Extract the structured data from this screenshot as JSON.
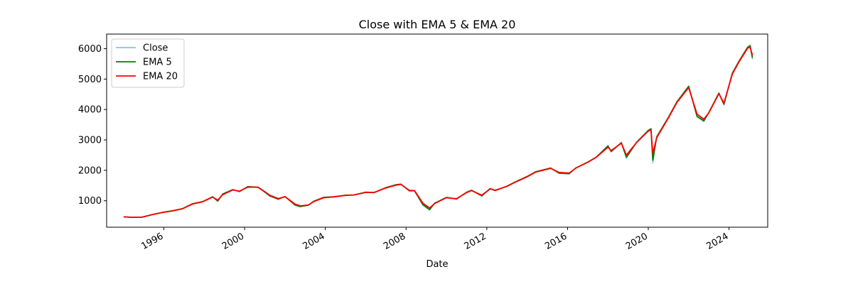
{
  "chart_data": {
    "type": "line",
    "title": "Close with EMA 5 & EMA 20",
    "xlabel": "Date",
    "ylabel": "",
    "xlim": [
      "1993-03-01",
      "2025-12-01"
    ],
    "ylim": [
      130,
      6480
    ],
    "x_ticks": [
      "1996",
      "2000",
      "2004",
      "2008",
      "2012",
      "2016",
      "2020",
      "2024"
    ],
    "y_ticks": [
      1000,
      2000,
      3000,
      4000,
      5000,
      6000
    ],
    "grid": false,
    "legend_position": "top-left",
    "series": [
      {
        "name": "Close",
        "color": "#8fbfe6",
        "points": [
          [
            "1994-01-03",
            470
          ],
          [
            "1994-06-01",
            455
          ],
          [
            "1994-12-01",
            460
          ],
          [
            "1995-06-01",
            545
          ],
          [
            "1995-12-01",
            615
          ],
          [
            "1996-06-01",
            670
          ],
          [
            "1996-12-01",
            740
          ],
          [
            "1997-06-01",
            900
          ],
          [
            "1997-12-01",
            970
          ],
          [
            "1998-06-01",
            1130
          ],
          [
            "1998-09-01",
            980
          ],
          [
            "1998-12-01",
            1230
          ],
          [
            "1999-06-01",
            1370
          ],
          [
            "1999-10-01",
            1300
          ],
          [
            "2000-03-01",
            1470
          ],
          [
            "2000-09-01",
            1440
          ],
          [
            "2000-12-01",
            1320
          ],
          [
            "2001-04-01",
            1150
          ],
          [
            "2001-09-01",
            1040
          ],
          [
            "2002-01-01",
            1140
          ],
          [
            "2002-07-01",
            850
          ],
          [
            "2002-10-01",
            800
          ],
          [
            "2003-03-01",
            850
          ],
          [
            "2003-06-01",
            980
          ],
          [
            "2003-12-01",
            1110
          ],
          [
            "2004-06-01",
            1130
          ],
          [
            "2005-01-01",
            1180
          ],
          [
            "2005-06-01",
            1190
          ],
          [
            "2006-01-01",
            1280
          ],
          [
            "2006-06-01",
            1270
          ],
          [
            "2007-01-01",
            1430
          ],
          [
            "2007-07-01",
            1530
          ],
          [
            "2007-10-01",
            1550
          ],
          [
            "2008-03-01",
            1320
          ],
          [
            "2008-06-01",
            1330
          ],
          [
            "2008-11-01",
            850
          ],
          [
            "2009-03-01",
            690
          ],
          [
            "2009-06-01",
            920
          ],
          [
            "2010-01-01",
            1110
          ],
          [
            "2010-07-01",
            1050
          ],
          [
            "2011-01-01",
            1280
          ],
          [
            "2011-04-01",
            1350
          ],
          [
            "2011-10-01",
            1150
          ],
          [
            "2012-03-01",
            1400
          ],
          [
            "2012-06-01",
            1330
          ],
          [
            "2013-01-01",
            1480
          ],
          [
            "2013-06-01",
            1620
          ],
          [
            "2014-01-01",
            1800
          ],
          [
            "2014-06-01",
            1950
          ],
          [
            "2015-03-01",
            2080
          ],
          [
            "2015-08-01",
            1900
          ],
          [
            "2016-02-01",
            1880
          ],
          [
            "2016-06-01",
            2080
          ],
          [
            "2017-01-01",
            2270
          ],
          [
            "2017-06-01",
            2430
          ],
          [
            "2018-01-01",
            2820
          ],
          [
            "2018-03-01",
            2600
          ],
          [
            "2018-09-01",
            2920
          ],
          [
            "2018-12-01",
            2400
          ],
          [
            "2019-06-01",
            2920
          ],
          [
            "2020-01-01",
            3320
          ],
          [
            "2020-02-19",
            3380
          ],
          [
            "2020-03-23",
            2240
          ],
          [
            "2020-06-01",
            3100
          ],
          [
            "2021-01-01",
            3750
          ],
          [
            "2021-06-01",
            4250
          ],
          [
            "2022-01-01",
            4780
          ],
          [
            "2022-06-01",
            3750
          ],
          [
            "2022-10-01",
            3600
          ],
          [
            "2023-01-01",
            3900
          ],
          [
            "2023-07-01",
            4550
          ],
          [
            "2023-10-01",
            4150
          ],
          [
            "2024-03-01",
            5200
          ],
          [
            "2024-07-01",
            5600
          ],
          [
            "2024-12-01",
            6050
          ],
          [
            "2025-01-15",
            6120
          ],
          [
            "2025-03-01",
            5650
          ]
        ]
      },
      {
        "name": "EMA 5",
        "color": "#008000",
        "points": [
          [
            "1994-01-03",
            470
          ],
          [
            "1994-06-01",
            455
          ],
          [
            "1994-12-01",
            460
          ],
          [
            "1995-06-01",
            545
          ],
          [
            "1995-12-01",
            615
          ],
          [
            "1996-06-01",
            670
          ],
          [
            "1996-12-01",
            740
          ],
          [
            "1997-06-01",
            900
          ],
          [
            "1997-12-01",
            970
          ],
          [
            "1998-06-01",
            1130
          ],
          [
            "1998-09-01",
            990
          ],
          [
            "1998-12-01",
            1220
          ],
          [
            "1999-06-01",
            1365
          ],
          [
            "1999-10-01",
            1305
          ],
          [
            "2000-03-01",
            1465
          ],
          [
            "2000-09-01",
            1440
          ],
          [
            "2000-12-01",
            1325
          ],
          [
            "2001-04-01",
            1160
          ],
          [
            "2001-09-01",
            1050
          ],
          [
            "2002-01-01",
            1140
          ],
          [
            "2002-07-01",
            860
          ],
          [
            "2002-10-01",
            810
          ],
          [
            "2003-03-01",
            855
          ],
          [
            "2003-06-01",
            980
          ],
          [
            "2003-12-01",
            1110
          ],
          [
            "2004-06-01",
            1130
          ],
          [
            "2005-01-01",
            1180
          ],
          [
            "2005-06-01",
            1190
          ],
          [
            "2006-01-01",
            1280
          ],
          [
            "2006-06-01",
            1270
          ],
          [
            "2007-01-01",
            1430
          ],
          [
            "2007-07-01",
            1525
          ],
          [
            "2007-10-01",
            1545
          ],
          [
            "2008-03-01",
            1325
          ],
          [
            "2008-06-01",
            1330
          ],
          [
            "2008-11-01",
            870
          ],
          [
            "2009-03-01",
            710
          ],
          [
            "2009-06-01",
            920
          ],
          [
            "2010-01-01",
            1110
          ],
          [
            "2010-07-01",
            1055
          ],
          [
            "2011-01-01",
            1280
          ],
          [
            "2011-04-01",
            1345
          ],
          [
            "2011-10-01",
            1160
          ],
          [
            "2012-03-01",
            1400
          ],
          [
            "2012-06-01",
            1335
          ],
          [
            "2013-01-01",
            1480
          ],
          [
            "2013-06-01",
            1620
          ],
          [
            "2014-01-01",
            1800
          ],
          [
            "2014-06-01",
            1950
          ],
          [
            "2015-03-01",
            2075
          ],
          [
            "2015-08-01",
            1910
          ],
          [
            "2016-02-01",
            1890
          ],
          [
            "2016-06-01",
            2080
          ],
          [
            "2017-01-01",
            2270
          ],
          [
            "2017-06-01",
            2430
          ],
          [
            "2018-01-01",
            2800
          ],
          [
            "2018-03-01",
            2620
          ],
          [
            "2018-09-01",
            2910
          ],
          [
            "2018-12-01",
            2430
          ],
          [
            "2019-06-01",
            2920
          ],
          [
            "2020-01-01",
            3310
          ],
          [
            "2020-02-19",
            3360
          ],
          [
            "2020-03-23",
            2330
          ],
          [
            "2020-06-01",
            3100
          ],
          [
            "2021-01-01",
            3750
          ],
          [
            "2021-06-01",
            4250
          ],
          [
            "2022-01-01",
            4760
          ],
          [
            "2022-06-01",
            3780
          ],
          [
            "2022-10-01",
            3630
          ],
          [
            "2023-01-01",
            3900
          ],
          [
            "2023-07-01",
            4540
          ],
          [
            "2023-10-01",
            4170
          ],
          [
            "2024-03-01",
            5190
          ],
          [
            "2024-07-01",
            5590
          ],
          [
            "2024-12-01",
            6040
          ],
          [
            "2025-01-15",
            6100
          ],
          [
            "2025-03-01",
            5700
          ]
        ]
      },
      {
        "name": "EMA 20",
        "color": "#ff0000",
        "points": [
          [
            "1994-01-03",
            470
          ],
          [
            "1994-06-01",
            457
          ],
          [
            "1994-12-01",
            460
          ],
          [
            "1995-06-01",
            540
          ],
          [
            "1995-12-01",
            610
          ],
          [
            "1996-06-01",
            665
          ],
          [
            "1996-12-01",
            735
          ],
          [
            "1997-06-01",
            890
          ],
          [
            "1997-12-01",
            965
          ],
          [
            "1998-06-01",
            1120
          ],
          [
            "1998-09-01",
            1020
          ],
          [
            "1998-12-01",
            1200
          ],
          [
            "1999-06-01",
            1355
          ],
          [
            "1999-10-01",
            1315
          ],
          [
            "2000-03-01",
            1450
          ],
          [
            "2000-09-01",
            1445
          ],
          [
            "2000-12-01",
            1335
          ],
          [
            "2001-04-01",
            1180
          ],
          [
            "2001-09-01",
            1070
          ],
          [
            "2002-01-01",
            1135
          ],
          [
            "2002-07-01",
            890
          ],
          [
            "2002-10-01",
            830
          ],
          [
            "2003-03-01",
            860
          ],
          [
            "2003-06-01",
            970
          ],
          [
            "2003-12-01",
            1100
          ],
          [
            "2004-06-01",
            1128
          ],
          [
            "2005-01-01",
            1175
          ],
          [
            "2005-06-01",
            1190
          ],
          [
            "2006-01-01",
            1275
          ],
          [
            "2006-06-01",
            1272
          ],
          [
            "2007-01-01",
            1420
          ],
          [
            "2007-07-01",
            1515
          ],
          [
            "2007-10-01",
            1535
          ],
          [
            "2008-03-01",
            1340
          ],
          [
            "2008-06-01",
            1335
          ],
          [
            "2008-11-01",
            920
          ],
          [
            "2009-03-01",
            760
          ],
          [
            "2009-06-01",
            910
          ],
          [
            "2010-01-01",
            1100
          ],
          [
            "2010-07-01",
            1065
          ],
          [
            "2011-01-01",
            1270
          ],
          [
            "2011-04-01",
            1335
          ],
          [
            "2011-10-01",
            1180
          ],
          [
            "2012-03-01",
            1390
          ],
          [
            "2012-06-01",
            1345
          ],
          [
            "2013-01-01",
            1475
          ],
          [
            "2013-06-01",
            1610
          ],
          [
            "2014-01-01",
            1790
          ],
          [
            "2014-06-01",
            1940
          ],
          [
            "2015-03-01",
            2065
          ],
          [
            "2015-08-01",
            1930
          ],
          [
            "2016-02-01",
            1910
          ],
          [
            "2016-06-01",
            2075
          ],
          [
            "2017-01-01",
            2265
          ],
          [
            "2017-06-01",
            2425
          ],
          [
            "2018-01-01",
            2760
          ],
          [
            "2018-03-01",
            2650
          ],
          [
            "2018-09-01",
            2895
          ],
          [
            "2018-12-01",
            2500
          ],
          [
            "2019-06-01",
            2910
          ],
          [
            "2020-01-01",
            3290
          ],
          [
            "2020-02-19",
            3330
          ],
          [
            "2020-03-23",
            2550
          ],
          [
            "2020-06-01",
            3070
          ],
          [
            "2021-01-01",
            3730
          ],
          [
            "2021-06-01",
            4230
          ],
          [
            "2022-01-01",
            4720
          ],
          [
            "2022-06-01",
            3850
          ],
          [
            "2022-10-01",
            3680
          ],
          [
            "2023-01-01",
            3890
          ],
          [
            "2023-07-01",
            4520
          ],
          [
            "2023-10-01",
            4210
          ],
          [
            "2024-03-01",
            5160
          ],
          [
            "2024-07-01",
            5570
          ],
          [
            "2024-12-01",
            6010
          ],
          [
            "2025-01-15",
            6060
          ],
          [
            "2025-03-01",
            5780
          ]
        ]
      }
    ]
  }
}
